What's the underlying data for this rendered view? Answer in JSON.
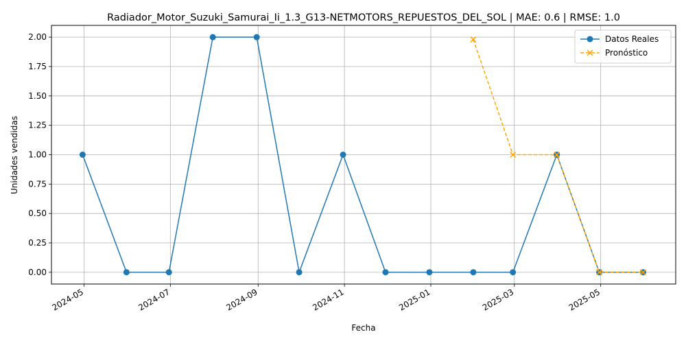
{
  "chart_data": {
    "type": "line",
    "title": "Radiador_Motor_Suzuki_Samurai_Ii_1.3_G13-NETMOTORS_REPUESTOS_DEL_SOL | MAE: 0.6 | RMSE: 1.0",
    "xlabel": "Fecha",
    "ylabel": "Unidades vendidas",
    "xlim": [
      "2024-04-08",
      "2025-06-23"
    ],
    "ylim": [
      -0.1,
      2.1
    ],
    "grid": true,
    "legend_position": "upper-right",
    "x_ticks": [
      "2024-05-01",
      "2024-07-01",
      "2024-09-01",
      "2024-11-01",
      "2025-01-01",
      "2025-03-01",
      "2025-05-01"
    ],
    "x_tick_labels": [
      "2024-05",
      "2024-07",
      "2024-09",
      "2024-11",
      "2025-01",
      "2025-03",
      "2025-05"
    ],
    "y_ticks": [
      0.0,
      0.25,
      0.5,
      0.75,
      1.0,
      1.25,
      1.5,
      1.75,
      2.0
    ],
    "y_tick_labels": [
      "0.00",
      "0.25",
      "0.50",
      "0.75",
      "1.00",
      "1.25",
      "1.50",
      "1.75",
      "2.00"
    ],
    "series": [
      {
        "name": "Datos Reales",
        "color": "#1f77b4",
        "line_style": "solid",
        "marker": "circle",
        "x": [
          "2024-04-30",
          "2024-05-31",
          "2024-06-30",
          "2024-07-31",
          "2024-08-31",
          "2024-09-30",
          "2024-10-31",
          "2024-11-30",
          "2024-12-31",
          "2025-01-31",
          "2025-02-28",
          "2025-03-31",
          "2025-04-30",
          "2025-05-31"
        ],
        "values": [
          1,
          0,
          0,
          2,
          2,
          0,
          1,
          0,
          0,
          0,
          0,
          1,
          0,
          0
        ]
      },
      {
        "name": "Pronóstico",
        "color": "#ffa500",
        "line_style": "dashed",
        "marker": "x",
        "x": [
          "2025-01-31",
          "2025-02-28",
          "2025-03-31",
          "2025-04-30",
          "2025-05-31"
        ],
        "values": [
          1.98,
          1.0,
          1.0,
          0.0,
          0.0
        ]
      }
    ]
  }
}
